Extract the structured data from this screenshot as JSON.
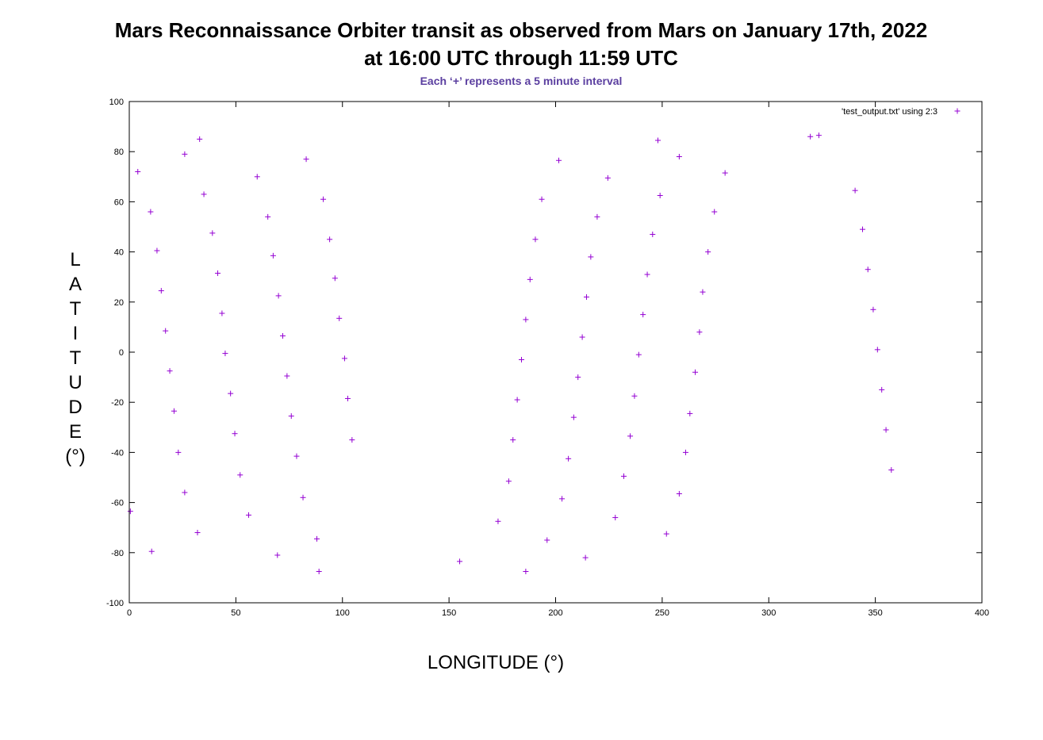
{
  "chart_data": {
    "type": "scatter",
    "title_lines": [
      "Mars Reconnaissance Orbiter transit as observed from Mars on January 17th, 2022",
      "at 16:00 UTC through 11:59 UTC"
    ],
    "subtitle": "Each ‘+’ represents a 5 minute interval",
    "xlabel": "LONGITUDE (°)",
    "ylabel": "LATITUDE (°)",
    "xlim": [
      0,
      400
    ],
    "ylim": [
      -100,
      100
    ],
    "x_ticks": [
      0,
      50,
      100,
      150,
      200,
      250,
      300,
      350,
      400
    ],
    "y_ticks": [
      -100,
      -80,
      -60,
      -40,
      -20,
      0,
      20,
      40,
      60,
      80,
      100
    ],
    "grid": false,
    "legend_position": "top-right",
    "series": [
      {
        "name": "'test_output.txt' using 2:3",
        "marker": "+",
        "color": "#9400d3",
        "points": [
          [
            4,
            72
          ],
          [
            10,
            56
          ],
          [
            13,
            40.5
          ],
          [
            15,
            24.5
          ],
          [
            17,
            8.5
          ],
          [
            19,
            -7.5
          ],
          [
            21,
            -23.5
          ],
          [
            23,
            -40
          ],
          [
            26,
            -56
          ],
          [
            32,
            -72
          ],
          [
            10.5,
            -79.5
          ],
          [
            0.5,
            -63.5
          ],
          [
            26,
            79
          ],
          [
            33,
            85
          ],
          [
            35,
            63
          ],
          [
            39,
            47.5
          ],
          [
            41.5,
            31.5
          ],
          [
            43.5,
            15.5
          ],
          [
            45,
            -0.5
          ],
          [
            47.5,
            -16.5
          ],
          [
            49.5,
            -32.5
          ],
          [
            52,
            -49
          ],
          [
            56,
            -65
          ],
          [
            69.5,
            -81
          ],
          [
            60,
            70
          ],
          [
            65,
            54
          ],
          [
            67.5,
            38.5
          ],
          [
            70,
            22.5
          ],
          [
            72,
            6.5
          ],
          [
            74,
            -9.5
          ],
          [
            76,
            -25.5
          ],
          [
            78.5,
            -41.5
          ],
          [
            81.5,
            -58
          ],
          [
            88,
            -74.5
          ],
          [
            89,
            -87.5
          ],
          [
            83,
            77
          ],
          [
            91,
            61
          ],
          [
            94,
            45
          ],
          [
            96.5,
            29.5
          ],
          [
            98.5,
            13.5
          ],
          [
            101,
            -2.5
          ],
          [
            102.5,
            -18.5
          ],
          [
            104.5,
            -35
          ],
          [
            155,
            -83.5
          ],
          [
            173,
            -67.5
          ],
          [
            178,
            -51.5
          ],
          [
            180,
            -35
          ],
          [
            182,
            -19
          ],
          [
            184,
            -3
          ],
          [
            186,
            13
          ],
          [
            188,
            29
          ],
          [
            190.5,
            45
          ],
          [
            193.5,
            61
          ],
          [
            201.5,
            76.5
          ],
          [
            186,
            -87.5
          ],
          [
            196,
            -75
          ],
          [
            203,
            -58.5
          ],
          [
            206,
            -42.5
          ],
          [
            208.5,
            -26
          ],
          [
            210.5,
            -10
          ],
          [
            212.5,
            6
          ],
          [
            214.5,
            22
          ],
          [
            216.5,
            38
          ],
          [
            219.5,
            54
          ],
          [
            224.5,
            69.5
          ],
          [
            214,
            -82
          ],
          [
            228,
            -66
          ],
          [
            232,
            -49.5
          ],
          [
            235,
            -33.5
          ],
          [
            237,
            -17.5
          ],
          [
            239,
            -1
          ],
          [
            241,
            15
          ],
          [
            243,
            31
          ],
          [
            245.5,
            47
          ],
          [
            249,
            62.5
          ],
          [
            248,
            84.5
          ],
          [
            252,
            -72.5
          ],
          [
            258,
            -56.5
          ],
          [
            261,
            -40
          ],
          [
            263,
            -24.5
          ],
          [
            265.5,
            -8
          ],
          [
            267.5,
            8
          ],
          [
            269,
            24
          ],
          [
            271.5,
            40
          ],
          [
            274.5,
            56
          ],
          [
            279.5,
            71.5
          ],
          [
            258,
            78
          ],
          [
            319.5,
            86
          ],
          [
            323.5,
            86.5
          ],
          [
            340.5,
            64.5
          ],
          [
            344,
            49
          ],
          [
            346.5,
            33
          ],
          [
            349,
            17
          ],
          [
            351,
            1
          ],
          [
            353,
            -15
          ],
          [
            355,
            -31
          ],
          [
            357.5,
            -47
          ]
        ]
      }
    ]
  }
}
